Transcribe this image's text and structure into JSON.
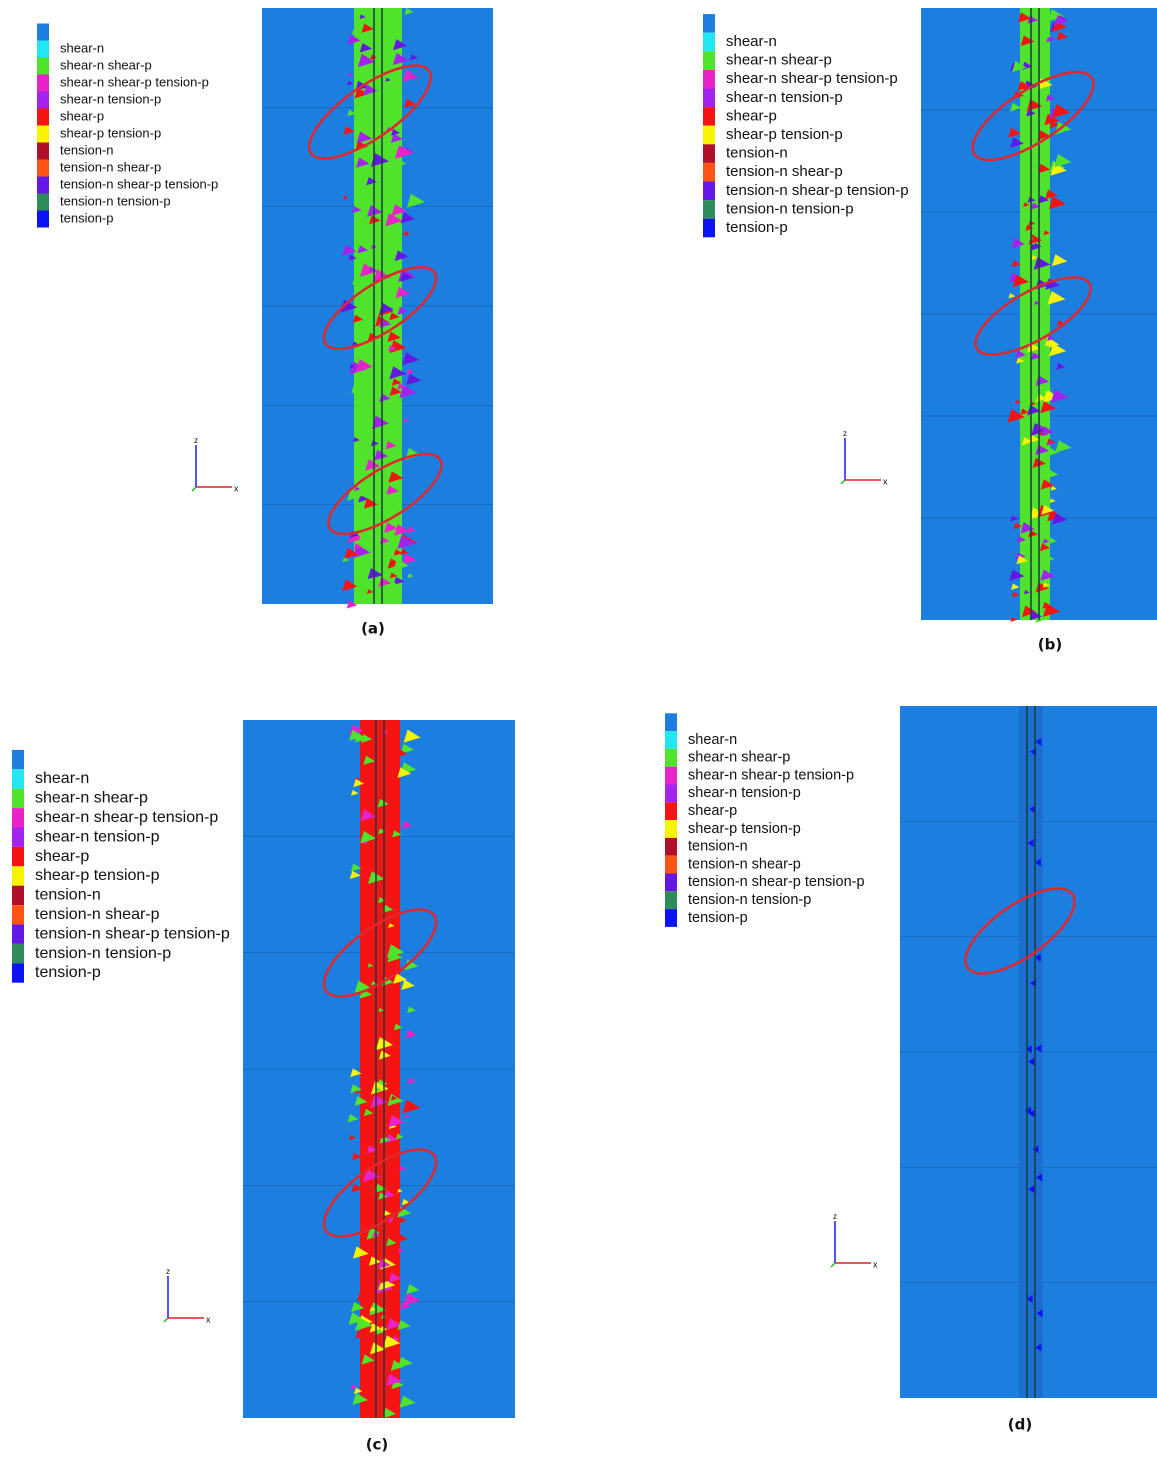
{
  "panels": [
    {
      "caption": "(a)",
      "axis_labels": {
        "vertical": "z",
        "horizontal": "x"
      },
      "legend": [
        {
          "label": "shear-n",
          "color": "#22e6f2"
        },
        {
          "label": "shear-n shear-p",
          "color": "#4fe32c"
        },
        {
          "label": "shear-n shear-p tension-p",
          "color": "#e823c8"
        },
        {
          "label": "shear-n tension-p",
          "color": "#a324ee"
        },
        {
          "label": "shear-p",
          "color": "#f41414"
        },
        {
          "label": "shear-p tension-p",
          "color": "#f8f400"
        },
        {
          "label": "tension-n",
          "color": "#b0102a"
        },
        {
          "label": "tension-n shear-p",
          "color": "#ff5416"
        },
        {
          "label": "tension-n shear-p tension-p",
          "color": "#6418e4"
        },
        {
          "label": "tension-n tension-p",
          "color": "#2f8a5c"
        },
        {
          "label": "tension-p",
          "color": "#0c14f4"
        }
      ]
    },
    {
      "caption": "(b)",
      "axis_labels": {
        "vertical": "z",
        "horizontal": "x"
      },
      "legend": [
        {
          "label": "shear-n",
          "color": "#22e6f2"
        },
        {
          "label": "shear-n shear-p",
          "color": "#4fe32c"
        },
        {
          "label": "shear-n shear-p tension-p",
          "color": "#e823c8"
        },
        {
          "label": "shear-n tension-p",
          "color": "#a324ee"
        },
        {
          "label": "shear-p",
          "color": "#f41414"
        },
        {
          "label": "shear-p tension-p",
          "color": "#f8f400"
        },
        {
          "label": "tension-n",
          "color": "#b0102a"
        },
        {
          "label": "tension-n shear-p",
          "color": "#ff5416"
        },
        {
          "label": "tension-n shear-p tension-p",
          "color": "#6418e4"
        },
        {
          "label": "tension-n tension-p",
          "color": "#2f8a5c"
        },
        {
          "label": "tension-p",
          "color": "#0c14f4"
        }
      ]
    },
    {
      "caption": "(c)",
      "axis_labels": {
        "vertical": "z",
        "horizontal": "x"
      },
      "legend": [
        {
          "label": "shear-n",
          "color": "#22e6f2"
        },
        {
          "label": "shear-n shear-p",
          "color": "#4fe32c"
        },
        {
          "label": "shear-n shear-p tension-p",
          "color": "#e823c8"
        },
        {
          "label": "shear-n tension-p",
          "color": "#a324ee"
        },
        {
          "label": "shear-p",
          "color": "#f41414"
        },
        {
          "label": "shear-p tension-p",
          "color": "#f8f400"
        },
        {
          "label": "tension-n",
          "color": "#b0102a"
        },
        {
          "label": "tension-n shear-p",
          "color": "#ff5416"
        },
        {
          "label": "tension-n shear-p tension-p",
          "color": "#6418e4"
        },
        {
          "label": "tension-n tension-p",
          "color": "#2f8a5c"
        },
        {
          "label": "tension-p",
          "color": "#0c14f4"
        }
      ]
    },
    {
      "caption": "(d)",
      "axis_labels": {
        "vertical": "z",
        "horizontal": "x"
      },
      "legend": [
        {
          "label": "shear-n",
          "color": "#22e6f2"
        },
        {
          "label": "shear-n shear-p",
          "color": "#4fe32c"
        },
        {
          "label": "shear-n shear-p tension-p",
          "color": "#e823c8"
        },
        {
          "label": "shear-n tension-p",
          "color": "#a324ee"
        },
        {
          "label": "shear-p",
          "color": "#f41414"
        },
        {
          "label": "shear-p tension-p",
          "color": "#f8f400"
        },
        {
          "label": "tension-n",
          "color": "#b0102a"
        },
        {
          "label": "tension-n shear-p",
          "color": "#ff5416"
        },
        {
          "label": "tension-n shear-p tension-p",
          "color": "#6418e4"
        },
        {
          "label": "tension-n tension-p",
          "color": "#2f8a5c"
        },
        {
          "label": "tension-p",
          "color": "#0c14f4"
        }
      ]
    }
  ]
}
